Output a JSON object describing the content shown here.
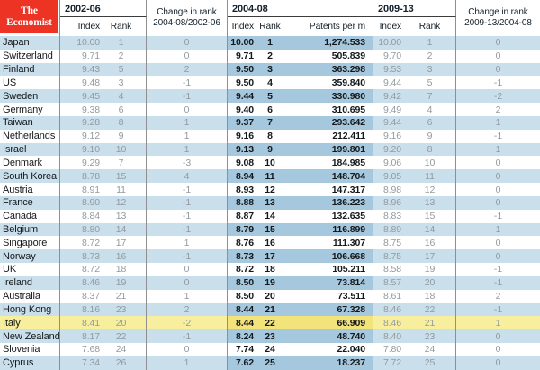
{
  "brand": {
    "line1": "The",
    "line2": "Economist"
  },
  "header": {
    "period1": {
      "label": "2002-06",
      "sub": [
        "Index",
        "Rank"
      ]
    },
    "change1": {
      "line1": "Change in rank",
      "line2": "2004-08/2002-06"
    },
    "period2": {
      "label": "2004-08",
      "sub": [
        "Index",
        "Rank",
        "Patents per m"
      ]
    },
    "period3": {
      "label": "2009-13",
      "sub": [
        "Index",
        "Rank"
      ]
    },
    "change2": {
      "line1": "Change in rank",
      "line2": "2009-13/2004-08"
    }
  },
  "colors": {
    "brand_red": "#ec3324",
    "row_blue": "#c9dfec",
    "row_blue_dark": "#a5c8de",
    "highlight_yellow": "#f7ef9d",
    "highlight_yellow_dark": "#f2e47b",
    "grid_line": "#8f8f8f",
    "text_gray": "#929a9f",
    "text_dark": "#15181a"
  },
  "chart_data": {
    "type": "table",
    "columns": [
      "Country",
      "Index 2002-06",
      "Rank 2002-06",
      "Change in rank 2004-08/2002-06",
      "Index 2004-08",
      "Rank 2004-08",
      "Patents per m 2004-08",
      "Index 2009-13",
      "Rank 2009-13",
      "Change in rank 2009-13/2004-08"
    ],
    "highlighted_row": "Italy",
    "rows": [
      {
        "country": "Japan",
        "index1": "10.00",
        "rank1": "1",
        "change1": "0",
        "index2": "10.00",
        "rank2": "1",
        "patents": "1,274.533",
        "index3": "10.00",
        "rank3": "1",
        "change2": "0"
      },
      {
        "country": "Switzerland",
        "index1": "9.71",
        "rank1": "2",
        "change1": "0",
        "index2": "9.71",
        "rank2": "2",
        "patents": "505.839",
        "index3": "9.70",
        "rank3": "2",
        "change2": "0"
      },
      {
        "country": "Finland",
        "index1": "9.43",
        "rank1": "5",
        "change1": "2",
        "index2": "9.50",
        "rank2": "3",
        "patents": "363.298",
        "index3": "9.53",
        "rank3": "3",
        "change2": "0"
      },
      {
        "country": "US",
        "index1": "9.48",
        "rank1": "3",
        "change1": "-1",
        "index2": "9.50",
        "rank2": "4",
        "patents": "359.840",
        "index3": "9.44",
        "rank3": "5",
        "change2": "-1"
      },
      {
        "country": "Sweden",
        "index1": "9.45",
        "rank1": "4",
        "change1": "-1",
        "index2": "9.44",
        "rank2": "5",
        "patents": "330.980",
        "index3": "9.42",
        "rank3": "7",
        "change2": "-2"
      },
      {
        "country": "Germany",
        "index1": "9.38",
        "rank1": "6",
        "change1": "0",
        "index2": "9.40",
        "rank2": "6",
        "patents": "310.695",
        "index3": "9.49",
        "rank3": "4",
        "change2": "2"
      },
      {
        "country": "Taiwan",
        "index1": "9.28",
        "rank1": "8",
        "change1": "1",
        "index2": "9.37",
        "rank2": "7",
        "patents": "293.642",
        "index3": "9.44",
        "rank3": "6",
        "change2": "1"
      },
      {
        "country": "Netherlands",
        "index1": "9.12",
        "rank1": "9",
        "change1": "1",
        "index2": "9.16",
        "rank2": "8",
        "patents": "212.411",
        "index3": "9.16",
        "rank3": "9",
        "change2": "-1"
      },
      {
        "country": "Israel",
        "index1": "9.10",
        "rank1": "10",
        "change1": "1",
        "index2": "9.13",
        "rank2": "9",
        "patents": "199.801",
        "index3": "9.20",
        "rank3": "8",
        "change2": "1"
      },
      {
        "country": "Denmark",
        "index1": "9.29",
        "rank1": "7",
        "change1": "-3",
        "index2": "9.08",
        "rank2": "10",
        "patents": "184.985",
        "index3": "9.06",
        "rank3": "10",
        "change2": "0"
      },
      {
        "country": "South Korea",
        "index1": "8.78",
        "rank1": "15",
        "change1": "4",
        "index2": "8.94",
        "rank2": "11",
        "patents": "148.704",
        "index3": "9.05",
        "rank3": "11",
        "change2": "0"
      },
      {
        "country": "Austria",
        "index1": "8.91",
        "rank1": "11",
        "change1": "-1",
        "index2": "8.93",
        "rank2": "12",
        "patents": "147.317",
        "index3": "8.98",
        "rank3": "12",
        "change2": "0"
      },
      {
        "country": "France",
        "index1": "8.90",
        "rank1": "12",
        "change1": "-1",
        "index2": "8.88",
        "rank2": "13",
        "patents": "136.223",
        "index3": "8.96",
        "rank3": "13",
        "change2": "0"
      },
      {
        "country": "Canada",
        "index1": "8.84",
        "rank1": "13",
        "change1": "-1",
        "index2": "8.87",
        "rank2": "14",
        "patents": "132.635",
        "index3": "8.83",
        "rank3": "15",
        "change2": "-1"
      },
      {
        "country": "Belgium",
        "index1": "8.80",
        "rank1": "14",
        "change1": "-1",
        "index2": "8.79",
        "rank2": "15",
        "patents": "116.899",
        "index3": "8.89",
        "rank3": "14",
        "change2": "1"
      },
      {
        "country": "Singapore",
        "index1": "8.72",
        "rank1": "17",
        "change1": "1",
        "index2": "8.76",
        "rank2": "16",
        "patents": "111.307",
        "index3": "8.75",
        "rank3": "16",
        "change2": "0"
      },
      {
        "country": "Norway",
        "index1": "8.73",
        "rank1": "16",
        "change1": "-1",
        "index2": "8.73",
        "rank2": "17",
        "patents": "106.668",
        "index3": "8.75",
        "rank3": "17",
        "change2": "0"
      },
      {
        "country": "UK",
        "index1": "8.72",
        "rank1": "18",
        "change1": "0",
        "index2": "8.72",
        "rank2": "18",
        "patents": "105.211",
        "index3": "8.58",
        "rank3": "19",
        "change2": "-1"
      },
      {
        "country": "Ireland",
        "index1": "8.46",
        "rank1": "19",
        "change1": "0",
        "index2": "8.50",
        "rank2": "19",
        "patents": "73.814",
        "index3": "8.57",
        "rank3": "20",
        "change2": "-1"
      },
      {
        "country": "Australia",
        "index1": "8.37",
        "rank1": "21",
        "change1": "1",
        "index2": "8.50",
        "rank2": "20",
        "patents": "73.511",
        "index3": "8.61",
        "rank3": "18",
        "change2": "2"
      },
      {
        "country": "Hong Kong",
        "index1": "8.16",
        "rank1": "23",
        "change1": "2",
        "index2": "8.44",
        "rank2": "21",
        "patents": "67.328",
        "index3": "8.46",
        "rank3": "22",
        "change2": "-1"
      },
      {
        "country": "Italy",
        "index1": "8.41",
        "rank1": "20",
        "change1": "-2",
        "index2": "8.44",
        "rank2": "22",
        "patents": "66.909",
        "index3": "8.46",
        "rank3": "21",
        "change2": "1",
        "highlight": true
      },
      {
        "country": "New Zealand",
        "index1": "8.17",
        "rank1": "22",
        "change1": "-1",
        "index2": "8.24",
        "rank2": "23",
        "patents": "48.740",
        "index3": "8.40",
        "rank3": "23",
        "change2": "0"
      },
      {
        "country": "Slovenia",
        "index1": "7.68",
        "rank1": "24",
        "change1": "0",
        "index2": "7.74",
        "rank2": "24",
        "patents": "22.040",
        "index3": "7.80",
        "rank3": "24",
        "change2": "0"
      },
      {
        "country": "Cyprus",
        "index1": "7.34",
        "rank1": "26",
        "change1": "1",
        "index2": "7.62",
        "rank2": "25",
        "patents": "18.237",
        "index3": "7.72",
        "rank3": "25",
        "change2": "0"
      }
    ]
  }
}
